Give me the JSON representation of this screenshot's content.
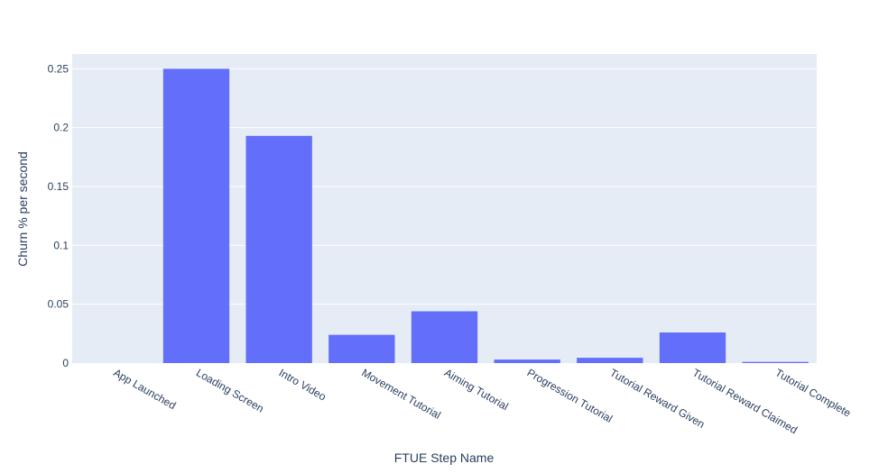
{
  "chart_data": {
    "type": "bar",
    "title": "",
    "xlabel": "FTUE Step Name",
    "ylabel": "Churn % per second",
    "categories": [
      "App Launched",
      "Loading Screen",
      "Intro Video",
      "Movement Tutorial",
      "Aiming Tutorial",
      "Progression Tutorial",
      "Tutorial Reward Given",
      "Tutorial Reward Claimed",
      "Tutorial Complete"
    ],
    "values": [
      0,
      0.25,
      0.193,
      0.024,
      0.044,
      0.003,
      0.0045,
      0.026,
      0.001
    ],
    "ylim": [
      0,
      0.2625
    ],
    "yticks": [
      0,
      0.05,
      0.1,
      0.15,
      0.2,
      0.25
    ],
    "ytick_labels": [
      "0",
      "0.05",
      "0.1",
      "0.15",
      "0.2",
      "0.25"
    ],
    "grid": true,
    "colors": {
      "bar": "#636efa",
      "plot_bg": "#e5ecf6",
      "grid": "#ffffff",
      "text": "#2a3f5f"
    }
  }
}
